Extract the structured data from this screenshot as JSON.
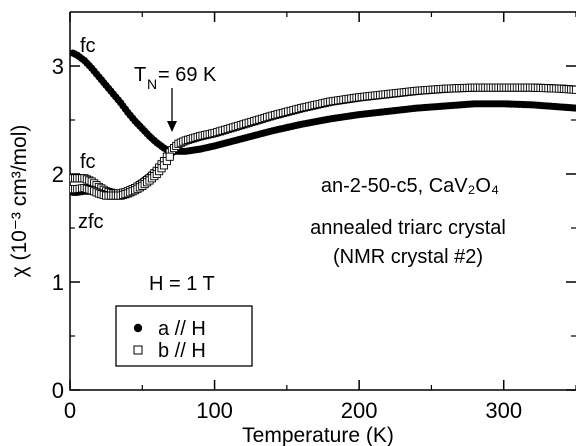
{
  "chart_data": {
    "type": "scatter",
    "xlabel": "Temperature (K)",
    "ylabel": "χ (10⁻³ cm³/mol)",
    "xlim": [
      0,
      350
    ],
    "ylim": [
      0,
      3.5
    ],
    "x_ticks": [
      "0",
      "100",
      "200",
      "300"
    ],
    "y_ticks": [
      "0",
      "1",
      "2",
      "3"
    ],
    "legend_title": "H = 1 T",
    "legend_placement": "lower-left",
    "annotations": {
      "sample": "an-2-50-c5, CaV₂O₄",
      "sample_line2": "annealed triarc crystal",
      "sample_line3": "(NMR crystal #2)",
      "tn_label": "T",
      "tn_sub": "N",
      "tn_value": " = 69 K",
      "fc_upper": "fc",
      "fc_lower": "fc",
      "zfc": "zfc"
    },
    "series": [
      {
        "name": "a // H",
        "marker": "filled-circle",
        "curves": [
          {
            "label": "fc",
            "points": [
              [
                2,
                3.12
              ],
              [
                5,
                3.1
              ],
              [
                10,
                3.05
              ],
              [
                15,
                2.98
              ],
              [
                20,
                2.9
              ],
              [
                25,
                2.82
              ],
              [
                30,
                2.74
              ],
              [
                35,
                2.66
              ],
              [
                40,
                2.57
              ],
              [
                45,
                2.49
              ],
              [
                50,
                2.42
              ],
              [
                55,
                2.35
              ],
              [
                60,
                2.29
              ],
              [
                65,
                2.24
              ],
              [
                69,
                2.21
              ],
              [
                75,
                2.21
              ],
              [
                80,
                2.21
              ],
              [
                90,
                2.23
              ],
              [
                100,
                2.26
              ],
              [
                120,
                2.33
              ],
              [
                140,
                2.4
              ],
              [
                160,
                2.46
              ],
              [
                180,
                2.51
              ],
              [
                200,
                2.55
              ],
              [
                220,
                2.58
              ],
              [
                240,
                2.61
              ],
              [
                260,
                2.63
              ],
              [
                280,
                2.65
              ],
              [
                300,
                2.65
              ],
              [
                320,
                2.64
              ],
              [
                340,
                2.62
              ],
              [
                350,
                2.61
              ]
            ]
          },
          {
            "label": "zfc",
            "points": [
              [
                2,
                1.83
              ],
              [
                5,
                1.83
              ],
              [
                10,
                1.84
              ],
              [
                15,
                1.84
              ],
              [
                20,
                1.82
              ],
              [
                25,
                1.8
              ],
              [
                30,
                1.8
              ],
              [
                35,
                1.81
              ],
              [
                40,
                1.84
              ],
              [
                45,
                1.88
              ],
              [
                50,
                1.93
              ],
              [
                55,
                1.98
              ],
              [
                60,
                2.04
              ],
              [
                65,
                2.11
              ],
              [
                69,
                2.18
              ],
              [
                72,
                2.21
              ]
            ]
          }
        ]
      },
      {
        "name": "b // H",
        "marker": "open-square",
        "curves": [
          {
            "label": "fc",
            "points": [
              [
                2,
                1.96
              ],
              [
                5,
                1.96
              ],
              [
                10,
                1.96
              ],
              [
                15,
                1.93
              ],
              [
                20,
                1.88
              ],
              [
                25,
                1.84
              ],
              [
                30,
                1.82
              ],
              [
                35,
                1.82
              ],
              [
                40,
                1.84
              ],
              [
                45,
                1.87
              ],
              [
                50,
                1.91
              ],
              [
                55,
                1.96
              ],
              [
                60,
                2.03
              ],
              [
                65,
                2.12
              ],
              [
                69,
                2.2
              ],
              [
                72,
                2.24
              ],
              [
                75,
                2.28
              ],
              [
                80,
                2.31
              ],
              [
                90,
                2.35
              ],
              [
                100,
                2.38
              ],
              [
                120,
                2.46
              ],
              [
                140,
                2.54
              ],
              [
                160,
                2.61
              ],
              [
                180,
                2.67
              ],
              [
                200,
                2.71
              ],
              [
                220,
                2.74
              ],
              [
                240,
                2.77
              ],
              [
                260,
                2.79
              ],
              [
                280,
                2.8
              ],
              [
                300,
                2.8
              ],
              [
                320,
                2.8
              ],
              [
                340,
                2.79
              ],
              [
                350,
                2.78
              ]
            ]
          },
          {
            "label": "zfc",
            "points": [
              [
                2,
                1.86
              ],
              [
                5,
                1.86
              ],
              [
                10,
                1.87
              ],
              [
                15,
                1.85
              ],
              [
                20,
                1.82
              ],
              [
                25,
                1.8
              ],
              [
                30,
                1.8
              ],
              [
                35,
                1.8
              ],
              [
                40,
                1.82
              ],
              [
                45,
                1.85
              ],
              [
                50,
                1.89
              ],
              [
                55,
                1.94
              ],
              [
                60,
                2.0
              ],
              [
                65,
                2.08
              ],
              [
                69,
                2.16
              ]
            ]
          }
        ]
      }
    ]
  }
}
